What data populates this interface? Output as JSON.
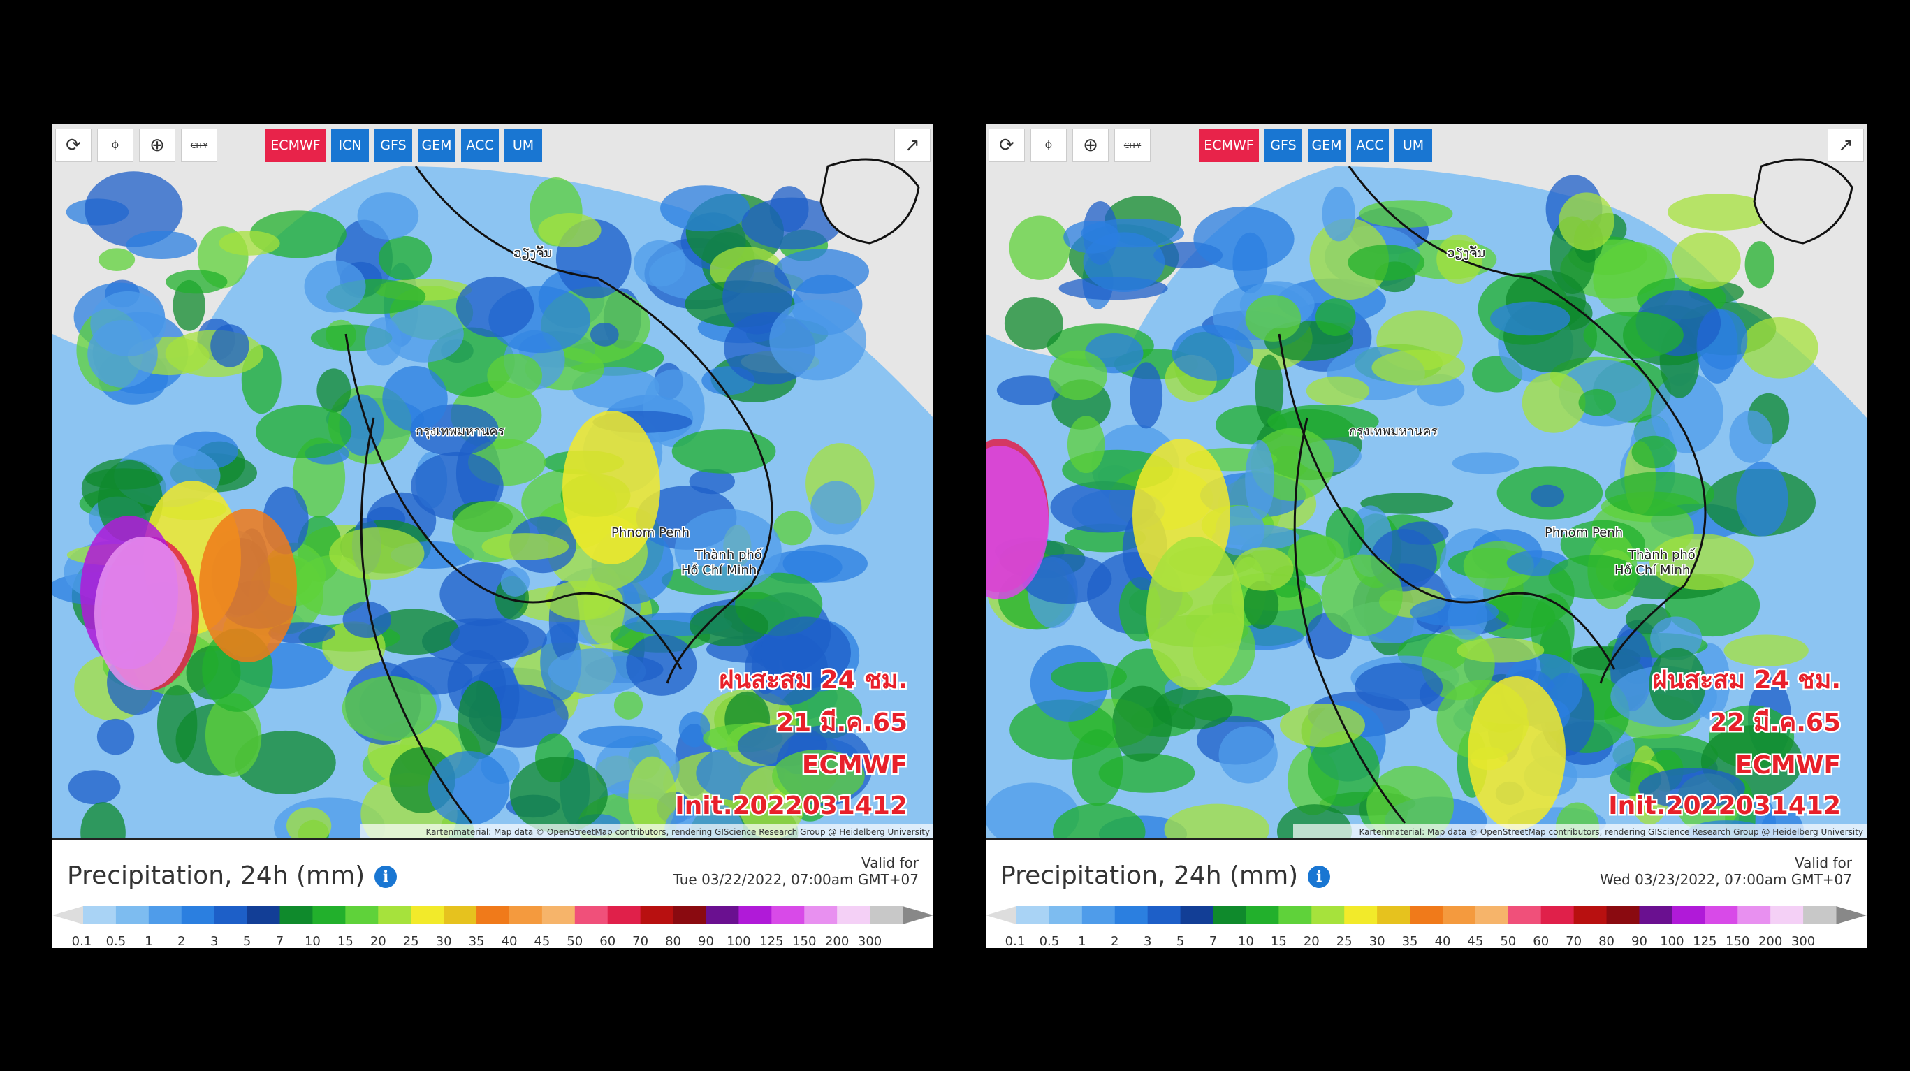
{
  "panels": [
    {
      "toolbar": {
        "city_icon": "CITY",
        "models": [
          "ECMWF",
          "ICN",
          "GFS",
          "GEM",
          "ACC",
          "UM"
        ]
      },
      "map_labels": {
        "vientiane": "ວຽງຈັນ",
        "bangkok": "กรุงเทพมหานคร",
        "phnom_penh": "Phnom Penh",
        "hcm_line1": "Thành phố",
        "hcm_line2": "Hồ Chí Minh"
      },
      "overlay": [
        "ฝนสะสม 24 ชม.",
        "21 มี.ค.65",
        "ECMWF",
        "Init.2022031412"
      ],
      "attribution": "Kartenmaterial: Map data © OpenStreetMap contributors, rendering GIScience Research Group @ Heidelberg University",
      "legend": {
        "title": "Precipitation, 24h (mm)",
        "valid_label": "Valid for",
        "valid_time": "Tue 03/22/2022, 07:00am GMT+07"
      }
    },
    {
      "toolbar": {
        "city_icon": "CITY",
        "models": [
          "ECMWF",
          "GFS",
          "GEM",
          "ACC",
          "UM"
        ]
      },
      "map_labels": {
        "vientiane": "ວຽງຈັນ",
        "bangkok": "กรุงเทพมหานคร",
        "phnom_penh": "Phnom Penh",
        "hcm_line1": "Thành phố",
        "hcm_line2": "Hồ Chí Minh"
      },
      "overlay": [
        "ฝนสะสม 24 ชม.",
        "22 มี.ค.65",
        "ECMWF",
        "Init.2022031412"
      ],
      "attribution": "Kartenmaterial: Map data © OpenStreetMap contributors, rendering GIScience Research Group @ Heidelberg University",
      "legend": {
        "title": "Precipitation, 24h (mm)",
        "valid_label": "Valid for",
        "valid_time": "Wed 03/23/2022, 07:00am GMT+07"
      }
    }
  ],
  "scale": {
    "ticks": [
      "0.1",
      "0.5",
      "1",
      "2",
      "3",
      "5",
      "7",
      "10",
      "15",
      "20",
      "25",
      "30",
      "35",
      "40",
      "45",
      "50",
      "60",
      "70",
      "80",
      "90",
      "100",
      "125",
      "150",
      "200",
      "300"
    ],
    "colors": [
      "#a9d3f5",
      "#7dbcf0",
      "#4f9cea",
      "#2b7fe0",
      "#1d5fc8",
      "#123e96",
      "#0f8a2c",
      "#22b02c",
      "#5fd23a",
      "#a6e23c",
      "#f2ea2a",
      "#e6c21e",
      "#f07a1a",
      "#f49a3e",
      "#f6b46a",
      "#f0507a",
      "#e0204a",
      "#b81010",
      "#8a0a10",
      "#6a1090",
      "#b01ad8",
      "#d84ae8",
      "#e890f0",
      "#f4d0f6",
      "#c8c8c8"
    ]
  }
}
